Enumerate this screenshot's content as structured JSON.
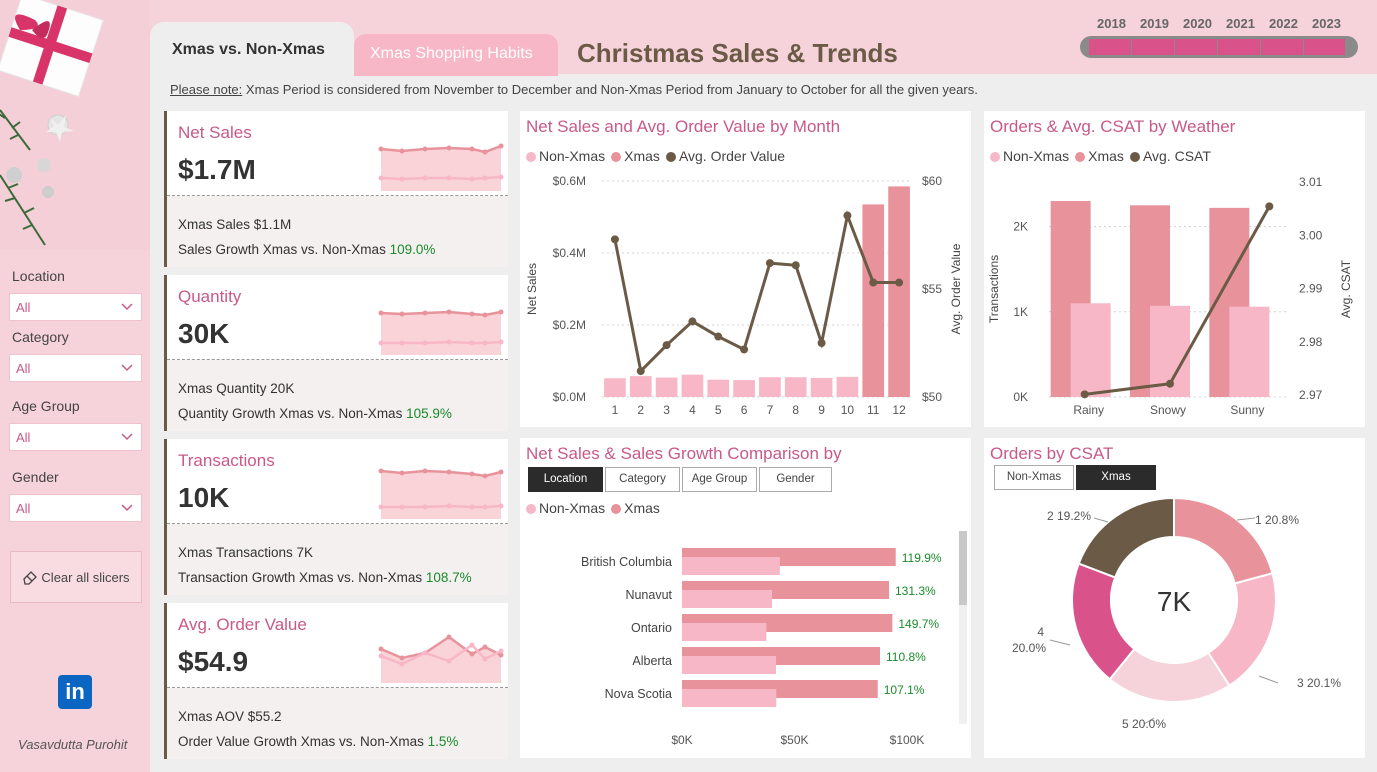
{
  "sidebar": {
    "slicers": [
      {
        "label": "Location",
        "value": "All"
      },
      {
        "label": "Category",
        "value": "All"
      },
      {
        "label": "Age Group",
        "value": "All"
      },
      {
        "label": "Gender",
        "value": "All"
      }
    ],
    "clear_label": "Clear all slicers",
    "linkedin_label": "in",
    "author": "Vasavdutta Purohit"
  },
  "tabs": {
    "active": "Xmas vs. Non-Xmas",
    "inactive": "Xmas Shopping Habits"
  },
  "title": "Christmas Sales & Trends",
  "years": [
    "2018",
    "2019",
    "2020",
    "2021",
    "2022",
    "2023"
  ],
  "note": {
    "label": "Please note:",
    "text": " Xmas Period is considered from November to December and Non-Xmas Period from January to October for all the given years."
  },
  "kpis": [
    {
      "title": "Net Sales",
      "value": "$1.7M",
      "line1_label": "Xmas Sales ",
      "line1_value": "$1.1M",
      "line2_label": "Sales Growth Xmas vs. Non-Xmas ",
      "line2_value": "109.0%"
    },
    {
      "title": "Quantity",
      "value": "30K",
      "line1_label": "Xmas Quantity ",
      "line1_value": "20K",
      "line2_label": "Quantity Growth Xmas vs. Non-Xmas ",
      "line2_value": "105.9%"
    },
    {
      "title": "Transactions",
      "value": "10K",
      "line1_label": "Xmas Transactions ",
      "line1_value": "7K",
      "line2_label": "Transaction Growth Xmas vs. Non-Xmas ",
      "line2_value": "108.7%"
    },
    {
      "title": "Avg. Order Value",
      "value": "$54.9",
      "line1_label": "Xmas AOV ",
      "line1_value": "$55.2",
      "line2_label": "Order Value Growth Xmas vs. Non-Xmas ",
      "line2_value": "1.5%"
    }
  ],
  "colors": {
    "non_xmas": "#f8b7c6",
    "xmas": "#e8939b",
    "avg": "#6b5a46",
    "accent": "#c8598a",
    "green": "#1a8a2a"
  },
  "chart_data": [
    {
      "type": "bar",
      "title": "Net Sales and Avg. Order Value by Month",
      "legend": [
        "Non-Xmas",
        "Xmas",
        "Avg. Order Value"
      ],
      "categories": [
        "1",
        "2",
        "3",
        "4",
        "5",
        "6",
        "7",
        "8",
        "9",
        "10",
        "11",
        "12"
      ],
      "series": [
        {
          "name": "Non-Xmas",
          "values": [
            0.052,
            0.058,
            0.054,
            0.062,
            0.048,
            0.047,
            0.055,
            0.055,
            0.053,
            0.056,
            null,
            null
          ]
        },
        {
          "name": "Xmas",
          "values": [
            null,
            null,
            null,
            null,
            null,
            null,
            null,
            null,
            null,
            null,
            0.535,
            0.585
          ]
        },
        {
          "name": "Avg. Order Value",
          "axis": "right",
          "values": [
            57.3,
            51.2,
            52.4,
            53.5,
            52.8,
            52.2,
            56.2,
            56.1,
            52.5,
            58.4,
            55.3,
            55.3
          ]
        }
      ],
      "ylabel": "Net Sales",
      "y2label": "Avg. Order Value",
      "yticks": [
        "$0.0M",
        "$0.2M",
        "$0.4M",
        "$0.6M"
      ],
      "ylim": [
        0,
        0.6
      ],
      "y2ticks": [
        "$50",
        "$55",
        "$60"
      ],
      "y2lim": [
        50,
        60
      ]
    },
    {
      "type": "bar",
      "title": "Orders & Avg. CSAT by Weather",
      "legend": [
        "Non-Xmas",
        "Xmas",
        "Avg. CSAT"
      ],
      "categories": [
        "Rainy",
        "Snowy",
        "Sunny"
      ],
      "series": [
        {
          "name": "Xmas",
          "values": [
            2300,
            2250,
            2220
          ]
        },
        {
          "name": "Non-Xmas",
          "values": [
            1100,
            1070,
            1060
          ]
        },
        {
          "name": "Avg. CSAT",
          "axis": "right",
          "values": [
            2.9705,
            2.9725,
            3.0058
          ]
        }
      ],
      "ylabel": "Transactions",
      "y2label": "Avg. CSAT",
      "yticks": [
        "0K",
        "1K",
        "2K"
      ],
      "ylim": [
        0,
        2500
      ],
      "y2ticks": [
        "2.97",
        "2.98",
        "2.99",
        "3.00",
        "3.01"
      ],
      "y2lim": [
        2.97,
        3.01
      ]
    },
    {
      "type": "bar",
      "orientation": "horizontal",
      "title": "Net Sales & Sales Growth Comparison by",
      "buttons": [
        "Location",
        "Category",
        "Age Group",
        "Gender"
      ],
      "legend": [
        "Non-Xmas",
        "Xmas"
      ],
      "categories": [
        "British Columbia",
        "Nunavut",
        "Ontario",
        "Alberta",
        "Nova Scotia"
      ],
      "series": [
        {
          "name": "Xmas",
          "values": [
            95000,
            92000,
            93500,
            88000,
            87000
          ]
        },
        {
          "name": "Non-Xmas",
          "values": [
            43500,
            40000,
            37500,
            41800,
            41900
          ]
        }
      ],
      "growth_labels": [
        "119.9%",
        "131.3%",
        "149.7%",
        "110.8%",
        "107.1%"
      ],
      "xticks": [
        "$0K",
        "$50K",
        "$100K"
      ],
      "xlim": [
        0,
        100000
      ]
    },
    {
      "type": "pie",
      "title": "Orders by CSAT",
      "buttons": [
        "Non-Xmas",
        "Xmas"
      ],
      "center_label": "7K",
      "slices": [
        {
          "label": "1",
          "value": 20.8,
          "pct": "20.8%",
          "color": "#e8939b"
        },
        {
          "label": "3",
          "value": 20.1,
          "pct": "20.1%",
          "color": "#f8b7c6"
        },
        {
          "label": "5",
          "value": 20.0,
          "pct": "20.0%",
          "color": "#f6d3da"
        },
        {
          "label": "4",
          "value": 20.0,
          "pct": "20.0%",
          "color": "#d9538a"
        },
        {
          "label": "2",
          "value": 19.2,
          "pct": "19.2%",
          "color": "#6b5a46"
        }
      ]
    }
  ]
}
